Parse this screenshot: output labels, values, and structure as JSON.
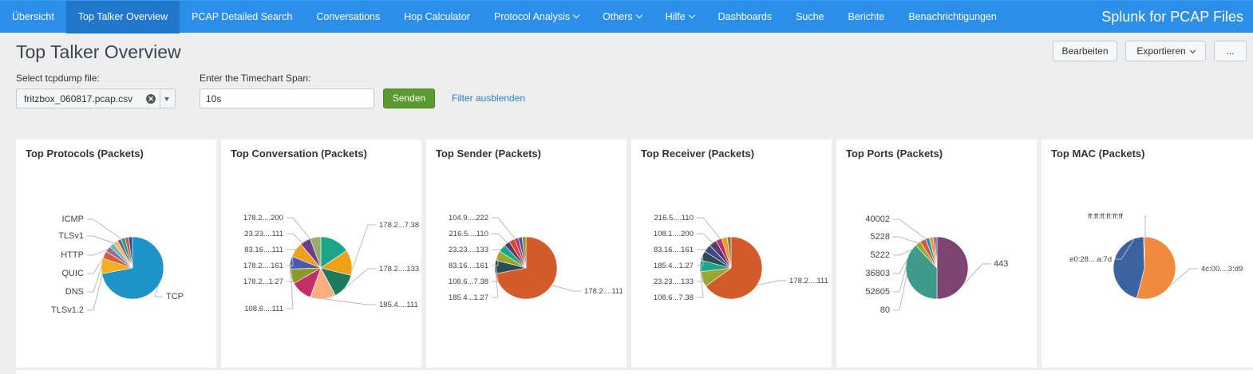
{
  "nav": {
    "items": [
      {
        "label": "Übersicht",
        "dropdown": false,
        "active": false
      },
      {
        "label": "Top Talker Overview",
        "dropdown": false,
        "active": true
      },
      {
        "label": "PCAP Detailed Search",
        "dropdown": false,
        "active": false
      },
      {
        "label": "Conversations",
        "dropdown": false,
        "active": false
      },
      {
        "label": "Hop Calculator",
        "dropdown": false,
        "active": false
      },
      {
        "label": "Protocol Analysis",
        "dropdown": true,
        "active": false
      },
      {
        "label": "Others",
        "dropdown": true,
        "active": false
      },
      {
        "label": "Hilfe",
        "dropdown": true,
        "active": false
      },
      {
        "label": "Dashboards",
        "dropdown": false,
        "active": false
      },
      {
        "label": "Suche",
        "dropdown": false,
        "active": false
      },
      {
        "label": "Berichte",
        "dropdown": false,
        "active": false
      },
      {
        "label": "Benachrichtigungen",
        "dropdown": false,
        "active": false
      }
    ],
    "app_title": "Splunk for PCAP Files"
  },
  "header": {
    "title": "Top Talker Overview",
    "edit_label": "Bearbeiten",
    "export_label": "Exportieren",
    "more_label": "..."
  },
  "filters": {
    "file_label": "Select tcpdump file:",
    "file_value": "fritzbox_060817.pcap.csv",
    "span_label": "Enter the Timechart Span:",
    "span_value": "10s",
    "submit_label": "Senden",
    "hide_label": "Filter ausblenden"
  },
  "colors": {
    "nav_bg": "#2b8ee8",
    "nav_active": "#1f78cc",
    "submit_bg": "#5a9a2e",
    "link": "#1e83d4"
  },
  "panels": [
    {
      "title": "Top Protocols (Packets)",
      "slices": [
        {
          "value": 72,
          "color": "#1e93c8"
        },
        {
          "value": 8,
          "color": "#f2b01e"
        },
        {
          "value": 4,
          "color": "#d85d3c"
        },
        {
          "value": 3,
          "color": "#956d95"
        },
        {
          "value": 2.5,
          "color": "#6ab7c7"
        },
        {
          "value": 2.5,
          "color": "#fcb64e"
        },
        {
          "value": 2,
          "color": "#6a5c9e"
        },
        {
          "value": 2,
          "color": "#1d9e6c"
        },
        {
          "value": 2,
          "color": "#d6563c"
        },
        {
          "value": 2,
          "color": "#2f5699"
        }
      ],
      "labels": [
        {
          "text": "ICMP",
          "side": "left"
        },
        {
          "text": "TLSv1",
          "side": "left"
        },
        {
          "text": "HTTP",
          "side": "left"
        },
        {
          "text": "QUIC",
          "side": "left"
        },
        {
          "text": "DNS",
          "side": "left"
        },
        {
          "text": "TLSv1.2",
          "side": "left"
        },
        {
          "text": "TCP",
          "side": "right"
        }
      ]
    },
    {
      "title": "Top Conversation (Packets)",
      "slices": [
        {
          "value": 14,
          "color": "#1aa68a"
        },
        {
          "value": 12,
          "color": "#f0a11a"
        },
        {
          "value": 12,
          "color": "#1e7a5e"
        },
        {
          "value": 12,
          "color": "#fbae82"
        },
        {
          "value": 10,
          "color": "#c42e6a"
        },
        {
          "value": 7,
          "color": "#8a9a24"
        },
        {
          "value": 6,
          "color": "#4a58b8"
        },
        {
          "value": 7,
          "color": "#f0a11a"
        },
        {
          "value": 5,
          "color": "#6a3e8a"
        },
        {
          "value": 5,
          "color": "#9aae6a"
        }
      ],
      "labels": [
        {
          "text": "178.2....200",
          "side": "left"
        },
        {
          "text": "23.23....111",
          "side": "left"
        },
        {
          "text": "83.16....111",
          "side": "left"
        },
        {
          "text": "178.2....161",
          "side": "left"
        },
        {
          "text": "178.2...1.27",
          "side": "left"
        },
        {
          "text": "108.6....111",
          "side": "left"
        },
        {
          "text": "178.2...7.38",
          "side": "right"
        },
        {
          "text": "178.2....133",
          "side": "right"
        },
        {
          "text": "185.4....111",
          "side": "right"
        }
      ]
    },
    {
      "title": "Top Sender (Packets)",
      "slices": [
        {
          "value": 72,
          "color": "#d35b2b"
        },
        {
          "value": 7,
          "color": "#2e4a52"
        },
        {
          "value": 5,
          "color": "#9aa62e"
        },
        {
          "value": 4,
          "color": "#1aa68a"
        },
        {
          "value": 3,
          "color": "#5a3a6a"
        },
        {
          "value": 3,
          "color": "#d44a28"
        },
        {
          "value": 2,
          "color": "#c42e6a"
        },
        {
          "value": 2,
          "color": "#4a58b8"
        },
        {
          "value": 2,
          "color": "#8a9a24"
        }
      ],
      "labels": [
        {
          "text": "104.9....222",
          "side": "left"
        },
        {
          "text": "216.5....110",
          "side": "left"
        },
        {
          "text": "23.23....133",
          "side": "left"
        },
        {
          "text": "83.16....161",
          "side": "left"
        },
        {
          "text": "108.6...7.38",
          "side": "left"
        },
        {
          "text": "185.4...1.27",
          "side": "left"
        },
        {
          "text": "178.2....111",
          "side": "right"
        }
      ]
    },
    {
      "title": "Top Receiver (Packets)",
      "slices": [
        {
          "value": 65,
          "color": "#d35b2b"
        },
        {
          "value": 8,
          "color": "#9aa62e"
        },
        {
          "value": 6,
          "color": "#1aa68a"
        },
        {
          "value": 5,
          "color": "#2e4a52"
        },
        {
          "value": 4,
          "color": "#3a4a8a"
        },
        {
          "value": 4,
          "color": "#5a3a6a"
        },
        {
          "value": 3,
          "color": "#c42e6a"
        },
        {
          "value": 3,
          "color": "#f0a11a"
        },
        {
          "value": 2,
          "color": "#8a7a5a"
        }
      ],
      "labels": [
        {
          "text": "216.5....110",
          "side": "left"
        },
        {
          "text": "108.1....200",
          "side": "left"
        },
        {
          "text": "83.16....161",
          "side": "left"
        },
        {
          "text": "185.4...1.27",
          "side": "left"
        },
        {
          "text": "23.23....133",
          "side": "left"
        },
        {
          "text": "108.6...7.38",
          "side": "left"
        },
        {
          "text": "178.2....111",
          "side": "right"
        }
      ]
    },
    {
      "title": "Top Ports (Packets)",
      "slices": [
        {
          "value": 50,
          "color": "#7e4471"
        },
        {
          "value": 38,
          "color": "#3e9a8a"
        },
        {
          "value": 3,
          "color": "#9aa62e"
        },
        {
          "value": 3,
          "color": "#d6563c"
        },
        {
          "value": 2,
          "color": "#1e93c8"
        },
        {
          "value": 2,
          "color": "#f0a11a"
        },
        {
          "value": 1,
          "color": "#c42e6a"
        },
        {
          "value": 1,
          "color": "#4a58b8"
        }
      ],
      "labels": [
        {
          "text": "40002",
          "side": "left"
        },
        {
          "text": "5228",
          "side": "left"
        },
        {
          "text": "5222",
          "side": "left"
        },
        {
          "text": "36803",
          "side": "left"
        },
        {
          "text": "52605",
          "side": "left"
        },
        {
          "text": "80",
          "side": "left"
        },
        {
          "text": "443",
          "side": "right"
        }
      ]
    },
    {
      "title": "Top MAC (Packets)",
      "slices": [
        {
          "value": 54,
          "color": "#f08a3c"
        },
        {
          "value": 45.5,
          "color": "#3a62a0"
        },
        {
          "value": 0.5,
          "color": "#c42e6a"
        }
      ],
      "labels": [
        {
          "text": "ff:ff:ff:ff:ff:ff",
          "side": "top"
        },
        {
          "text": "e0:28....a:7d",
          "side": "left"
        },
        {
          "text": "4c:00....3:d9",
          "side": "right"
        }
      ]
    }
  ]
}
